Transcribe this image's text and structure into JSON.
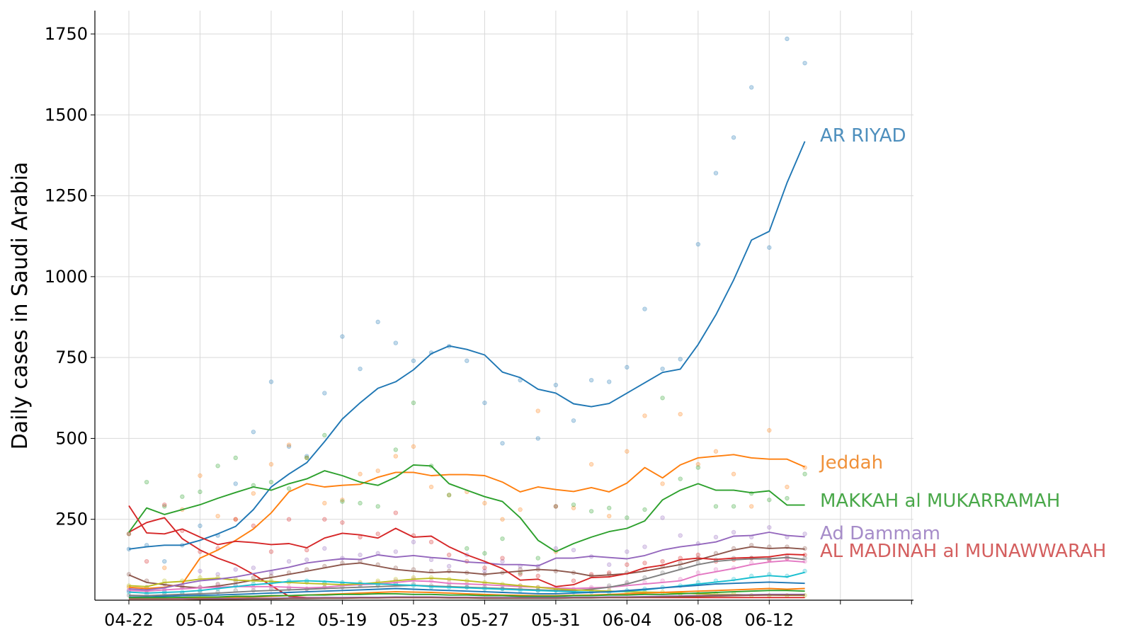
{
  "chart_data": {
    "type": "line",
    "title": "",
    "xlabel": "",
    "ylabel": "Daily cases in Saudi Arabia",
    "x_tick_labels": [
      "04-22",
      "05-04",
      "05-12",
      "05-19",
      "05-23",
      "05-27",
      "05-31",
      "06-04",
      "06-08",
      "06-12"
    ],
    "y_ticks": [
      250,
      500,
      750,
      1000,
      1250,
      1500,
      1750
    ],
    "ylim": [
      0,
      1820
    ],
    "grid": true,
    "x_count": 38,
    "series": [
      {
        "name": "AR RIYAD",
        "labeled": true,
        "color": "#1f77b4",
        "label_color": "#4e8fbd",
        "values": [
          158,
          165,
          170,
          170,
          185,
          205,
          228,
          280,
          350,
          390,
          425,
          490,
          560,
          610,
          655,
          675,
          712,
          762,
          786,
          775,
          758,
          705,
          688,
          652,
          640,
          607,
          598,
          608,
          640,
          672,
          704,
          714,
          790,
          882,
          990,
          1113,
          1140,
          1290,
          1418
        ],
        "points": [
          158,
          170,
          120,
          170,
          230,
          200,
          360,
          520,
          675,
          475,
          445,
          640,
          815,
          715,
          860,
          795,
          740,
          765,
          785,
          740,
          610,
          485,
          680,
          500,
          665,
          555,
          680,
          675,
          720,
          900,
          715,
          745,
          1100,
          1320,
          1430,
          1585,
          1090,
          1735,
          1660
        ]
      },
      {
        "name": "Jeddah",
        "labeled": true,
        "color": "#ff7f0e",
        "label_color": "#f0913a",
        "values": [
          40,
          36,
          40,
          50,
          130,
          155,
          185,
          220,
          270,
          335,
          360,
          350,
          355,
          358,
          380,
          395,
          395,
          385,
          388,
          388,
          385,
          365,
          335,
          350,
          342,
          336,
          348,
          335,
          362,
          410,
          378,
          418,
          440,
          445,
          450,
          440,
          436,
          436,
          412
        ],
        "points": [
          40,
          30,
          100,
          280,
          385,
          260,
          250,
          330,
          420,
          480,
          440,
          300,
          310,
          390,
          400,
          445,
          475,
          350,
          325,
          335,
          300,
          250,
          280,
          585,
          150,
          285,
          420,
          260,
          460,
          570,
          360,
          575,
          420,
          460,
          390,
          290,
          525,
          350,
          410
        ]
      },
      {
        "name": "MAKKAH al MUKARRAMAH",
        "labeled": true,
        "color": "#2ca02c",
        "label_color": "#4aa84a",
        "values": [
          210,
          285,
          265,
          280,
          295,
          315,
          333,
          350,
          340,
          360,
          375,
          400,
          385,
          365,
          355,
          380,
          418,
          415,
          360,
          340,
          320,
          305,
          255,
          185,
          150,
          175,
          195,
          212,
          222,
          245,
          310,
          340,
          360,
          340,
          340,
          332,
          338,
          294,
          294
        ],
        "points": [
          205,
          365,
          290,
          320,
          335,
          415,
          440,
          355,
          365,
          345,
          440,
          510,
          305,
          300,
          290,
          465,
          610,
          415,
          325,
          160,
          145,
          190,
          85,
          130,
          290,
          295,
          275,
          285,
          255,
          280,
          625,
          375,
          410,
          290,
          290,
          330,
          310,
          315,
          390
        ]
      },
      {
        "name": "Ad Dammam",
        "labeled": true,
        "color": "#9467bd",
        "label_color": "#a68cc9",
        "values": [
          35,
          32,
          38,
          50,
          60,
          65,
          72,
          82,
          92,
          102,
          115,
          122,
          128,
          126,
          140,
          133,
          138,
          132,
          128,
          118,
          115,
          110,
          110,
          106,
          130,
          130,
          136,
          132,
          128,
          138,
          155,
          165,
          172,
          180,
          198,
          200,
          210,
          200,
          196
        ],
        "points": [
          30,
          40,
          30,
          40,
          90,
          80,
          95,
          100,
          85,
          120,
          125,
          160,
          130,
          140,
          145,
          150,
          180,
          125,
          105,
          140,
          90,
          120,
          105,
          105,
          160,
          155,
          135,
          110,
          150,
          165,
          255,
          200,
          175,
          195,
          210,
          195,
          225,
          195,
          205
        ]
      },
      {
        "name": "AL MADINAH al MUNAWWARAH",
        "labeled": true,
        "color": "#d62728",
        "label_color": "#d45f5f",
        "values": [
          292,
          208,
          205,
          220,
          195,
          172,
          182,
          178,
          172,
          175,
          162,
          192,
          207,
          202,
          192,
          222,
          195,
          198,
          165,
          140,
          120,
          98,
          62,
          65,
          42,
          48,
          70,
          72,
          82,
          100,
          108,
          125,
          130,
          126,
          130,
          132,
          134,
          142,
          140
        ],
        "points": [
          205,
          120,
          295,
          215,
          150,
          160,
          250,
          230,
          150,
          250,
          155,
          250,
          240,
          195,
          205,
          270,
          200,
          180,
          140,
          120,
          100,
          130,
          80,
          75,
          290,
          60,
          80,
          85,
          110,
          115,
          120,
          130,
          140,
          120,
          125,
          130,
          125,
          130,
          140
        ]
      },
      {
        "name": "",
        "labeled": false,
        "color": "#d62728",
        "label_color": "#d62728",
        "values": [
          210,
          240,
          255,
          190,
          155,
          130,
          110,
          80,
          45,
          12,
          8,
          8,
          8,
          8,
          8,
          8,
          8,
          8,
          8,
          8,
          8,
          8,
          8,
          8,
          8,
          8,
          8,
          8,
          8,
          8,
          8,
          8,
          8,
          8,
          8,
          8,
          8,
          8,
          8
        ],
        "points": []
      },
      {
        "name": "",
        "labeled": false,
        "color": "#8c564b",
        "label_color": "#8c564b",
        "values": [
          78,
          55,
          48,
          42,
          38,
          44,
          52,
          62,
          70,
          80,
          90,
          100,
          110,
          115,
          105,
          95,
          90,
          85,
          88,
          85,
          80,
          85,
          90,
          95,
          92,
          85,
          75,
          78,
          82,
          90,
          100,
          110,
          125,
          140,
          155,
          165,
          160,
          162,
          158
        ],
        "points": [
          80,
          60,
          50,
          45,
          40,
          50,
          60,
          70,
          75,
          85,
          95,
          105,
          115,
          120,
          110,
          100,
          95,
          90,
          90,
          85,
          80,
          85,
          95,
          95,
          90,
          85,
          75,
          80,
          85,
          95,
          105,
          115,
          130,
          145,
          160,
          170,
          165,
          165,
          160
        ]
      },
      {
        "name": "",
        "labeled": false,
        "color": "#e377c2",
        "label_color": "#e377c2",
        "values": [
          30,
          28,
          32,
          35,
          38,
          40,
          42,
          42,
          42,
          40,
          38,
          40,
          45,
          48,
          50,
          55,
          60,
          58,
          52,
          50,
          48,
          45,
          42,
          40,
          38,
          36,
          38,
          40,
          45,
          50,
          55,
          60,
          78,
          88,
          98,
          110,
          118,
          122,
          118
        ],
        "points": [
          30,
          25,
          35,
          40,
          40,
          45,
          45,
          40,
          45,
          40,
          35,
          40,
          50,
          50,
          55,
          60,
          65,
          60,
          55,
          50,
          50,
          45,
          45,
          40,
          35,
          35,
          40,
          40,
          50,
          55,
          60,
          65,
          85,
          95,
          100,
          115,
          125,
          130,
          120
        ]
      },
      {
        "name": "",
        "labeled": false,
        "color": "#7f7f7f",
        "label_color": "#7f7f7f",
        "values": [
          15,
          14,
          16,
          18,
          20,
          22,
          25,
          28,
          30,
          32,
          34,
          36,
          38,
          40,
          42,
          44,
          46,
          44,
          42,
          40,
          38,
          36,
          34,
          32,
          30,
          30,
          34,
          40,
          50,
          65,
          80,
          95,
          110,
          120,
          125,
          128,
          128,
          132,
          126
        ],
        "points": [
          15,
          10,
          20,
          20,
          25,
          25,
          30,
          30,
          35,
          35,
          35,
          40,
          40,
          45,
          45,
          50,
          50,
          45,
          45,
          40,
          40,
          35,
          35,
          30,
          30,
          30,
          35,
          45,
          55,
          70,
          85,
          100,
          115,
          125,
          130,
          130,
          130,
          135,
          130
        ]
      },
      {
        "name": "",
        "labeled": false,
        "color": "#bcbd22",
        "label_color": "#bcbd22",
        "values": [
          45,
          42,
          55,
          58,
          65,
          68,
          62,
          60,
          58,
          55,
          52,
          50,
          48,
          50,
          55,
          60,
          65,
          68,
          65,
          60,
          55,
          50,
          45,
          40,
          35,
          32,
          30,
          28,
          26,
          25,
          24,
          22,
          20,
          18,
          18,
          16,
          16,
          15,
          15
        ],
        "points": [
          45,
          40,
          60,
          60,
          70,
          70,
          65,
          60,
          60,
          55,
          55,
          50,
          50,
          55,
          60,
          65,
          70,
          70,
          65,
          60,
          55,
          50,
          45,
          40,
          35,
          30,
          30,
          30,
          25,
          25,
          25,
          20,
          20,
          20,
          20,
          15,
          15,
          15,
          15
        ]
      },
      {
        "name": "",
        "labeled": false,
        "color": "#17becf",
        "label_color": "#17becf",
        "values": [
          25,
          22,
          24,
          26,
          30,
          36,
          42,
          48,
          52,
          58,
          60,
          58,
          55,
          52,
          50,
          48,
          46,
          42,
          40,
          38,
          36,
          34,
          32,
          30,
          28,
          26,
          25,
          25,
          28,
          32,
          38,
          44,
          50,
          56,
          62,
          70,
          76,
          72,
          86
        ],
        "points": [
          25,
          20,
          25,
          25,
          30,
          35,
          45,
          50,
          55,
          60,
          60,
          55,
          55,
          50,
          50,
          50,
          45,
          40,
          40,
          40,
          35,
          35,
          30,
          30,
          30,
          25,
          25,
          25,
          30,
          35,
          40,
          45,
          55,
          60,
          65,
          75,
          80,
          75,
          90
        ]
      },
      {
        "name": "",
        "labeled": false,
        "color": "#1f77b4",
        "label_color": "#1f77b4",
        "values": [
          10,
          10,
          12,
          14,
          15,
          16,
          18,
          20,
          22,
          24,
          26,
          28,
          30,
          32,
          34,
          36,
          34,
          32,
          30,
          28,
          26,
          24,
          22,
          20,
          20,
          22,
          24,
          26,
          30,
          34,
          38,
          42,
          46,
          50,
          52,
          54,
          56,
          54,
          52
        ],
        "points": []
      },
      {
        "name": "",
        "labeled": false,
        "color": "#ff7f0e",
        "label_color": "#ff7f0e",
        "values": [
          5,
          5,
          6,
          6,
          7,
          8,
          9,
          10,
          12,
          14,
          16,
          18,
          20,
          22,
          24,
          26,
          25,
          24,
          22,
          20,
          18,
          16,
          15,
          14,
          14,
          15,
          16,
          18,
          20,
          22,
          24,
          26,
          28,
          30,
          32,
          34,
          36,
          34,
          36
        ],
        "points": []
      },
      {
        "name": "",
        "labeled": false,
        "color": "#2ca02c",
        "label_color": "#2ca02c",
        "values": [
          8,
          8,
          8,
          9,
          10,
          10,
          12,
          12,
          14,
          14,
          16,
          16,
          18,
          18,
          20,
          20,
          18,
          18,
          16,
          16,
          14,
          14,
          12,
          12,
          12,
          14,
          14,
          16,
          16,
          18,
          18,
          20,
          22,
          24,
          26,
          28,
          30,
          30,
          28
        ],
        "points": []
      },
      {
        "name": "",
        "labeled": false,
        "color": "#9467bd",
        "label_color": "#9467bd",
        "values": [
          3,
          3,
          3,
          4,
          4,
          5,
          5,
          6,
          6,
          7,
          7,
          8,
          8,
          9,
          9,
          10,
          10,
          10,
          9,
          9,
          8,
          8,
          8,
          8,
          8,
          9,
          9,
          10,
          10,
          11,
          12,
          13,
          14,
          15,
          16,
          17,
          18,
          18,
          18
        ],
        "points": []
      },
      {
        "name": "",
        "labeled": false,
        "color": "#8c564b",
        "label_color": "#8c564b",
        "values": [
          2,
          2,
          2,
          2,
          3,
          3,
          3,
          4,
          4,
          5,
          5,
          6,
          6,
          7,
          7,
          8,
          8,
          8,
          7,
          7,
          6,
          6,
          6,
          6,
          6,
          7,
          7,
          8,
          8,
          9,
          10,
          11,
          12,
          13,
          14,
          15,
          16,
          16,
          16
        ],
        "points": []
      }
    ]
  }
}
